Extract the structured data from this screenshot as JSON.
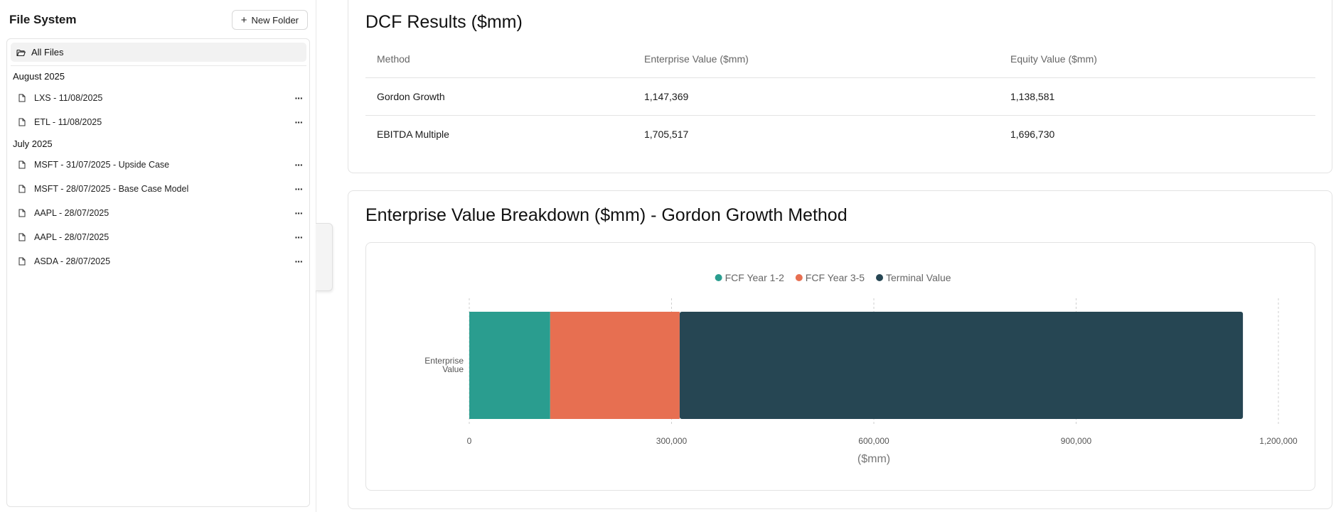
{
  "sidebar": {
    "title": "File System",
    "new_folder_label": "New Folder",
    "all_files_label": "All Files",
    "groups": [
      {
        "label": "August 2025",
        "files": [
          "LXS - 11/08/2025",
          "ETL - 11/08/2025"
        ]
      },
      {
        "label": "July 2025",
        "files": [
          "MSFT - 31/07/2025 - Upside Case",
          "MSFT - 28/07/2025 - Base Case Model",
          "AAPL - 28/07/2025",
          "AAPL - 28/07/2025",
          "ASDA - 28/07/2025"
        ]
      }
    ],
    "more_label": "···"
  },
  "results": {
    "title": "DCF Results ($mm)",
    "columns": [
      "Method",
      "Enterprise Value ($mm)",
      "Equity Value ($mm)"
    ],
    "rows": [
      [
        "Gordon Growth",
        "1,147,369",
        "1,138,581"
      ],
      [
        "EBITDA Multiple",
        "1,705,517",
        "1,696,730"
      ]
    ]
  },
  "breakdown": {
    "title": "Enterprise Value Breakdown ($mm) - Gordon Growth Method"
  },
  "chart_data": {
    "type": "bar",
    "orientation": "horizontal",
    "stacked": true,
    "categories": [
      "Enterprise Value"
    ],
    "category_label_lines": [
      "Enterprise",
      "Value"
    ],
    "series": [
      {
        "name": "FCF Year 1-2",
        "values": [
          120000
        ],
        "color": "#2a9d8f"
      },
      {
        "name": "FCF Year 3-5",
        "values": [
          192000
        ],
        "color": "#e76f51"
      },
      {
        "name": "Terminal Value",
        "values": [
          835369
        ],
        "color": "#264653"
      }
    ],
    "x_ticks": [
      "0",
      "300,000",
      "600,000",
      "900,000",
      "1,200,000"
    ],
    "x_tick_values": [
      0,
      300000,
      600000,
      900000,
      1200000
    ],
    "xlim": [
      0,
      1200000
    ],
    "xlabel": "($mm)",
    "ylabel": "",
    "legend_position": "top-center",
    "grid": "vertical dashed"
  }
}
